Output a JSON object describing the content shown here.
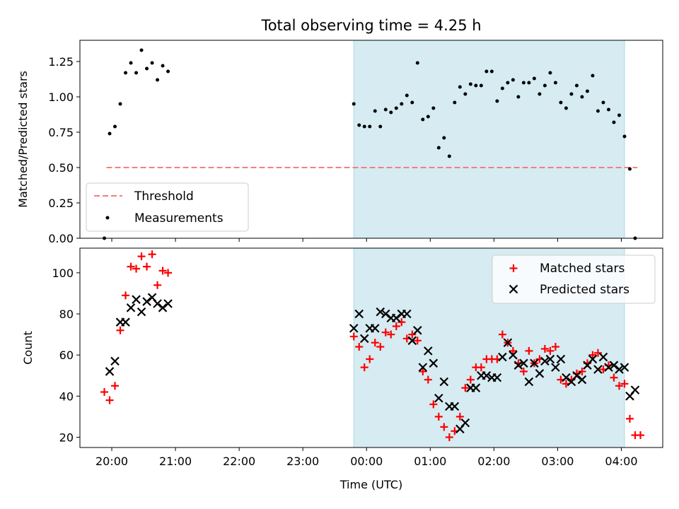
{
  "chart_data": [
    {
      "type": "scatter",
      "title": "Total observing time = 4.25 h",
      "ylabel": "Matched/Predicted stars",
      "xlabel": "",
      "xlim": [
        "19:30",
        "04:39"
      ],
      "ylim": [
        0,
        1.4
      ],
      "yticks": [
        "0.00",
        "0.25",
        "0.50",
        "0.75",
        "1.00",
        "1.25"
      ],
      "xticks": [
        "20:00",
        "21:00",
        "22:00",
        "23:00",
        "00:00",
        "01:00",
        "02:00",
        "03:00",
        "04:00"
      ],
      "shaded_span": [
        "23:48",
        "04:03"
      ],
      "legend_position": "lower-left",
      "threshold": {
        "name": "Threshold",
        "y": 0.5,
        "x": [
          "19:55",
          "04:15"
        ],
        "color": "#f08080"
      },
      "series": [
        {
          "name": "Measurements",
          "color": "#000000",
          "points": [
            [
              "19:53",
              0.0
            ],
            [
              "19:58",
              0.74
            ],
            [
              "20:03",
              0.79
            ],
            [
              "20:08",
              0.95
            ],
            [
              "20:13",
              1.17
            ],
            [
              "20:18",
              1.24
            ],
            [
              "20:23",
              1.17
            ],
            [
              "20:28",
              1.33
            ],
            [
              "20:33",
              1.2
            ],
            [
              "20:38",
              1.24
            ],
            [
              "20:43",
              1.12
            ],
            [
              "20:48",
              1.22
            ],
            [
              "20:53",
              1.18
            ],
            [
              "23:48",
              0.95
            ],
            [
              "23:53",
              0.8
            ],
            [
              "23:58",
              0.79
            ],
            [
              "00:03",
              0.79
            ],
            [
              "00:08",
              0.9
            ],
            [
              "00:13",
              0.79
            ],
            [
              "00:18",
              0.91
            ],
            [
              "00:23",
              0.89
            ],
            [
              "00:28",
              0.92
            ],
            [
              "00:33",
              0.95
            ],
            [
              "00:38",
              1.01
            ],
            [
              "00:43",
              0.96
            ],
            [
              "00:48",
              1.24
            ],
            [
              "00:53",
              0.84
            ],
            [
              "00:58",
              0.86
            ],
            [
              "01:03",
              0.92
            ],
            [
              "01:08",
              0.64
            ],
            [
              "01:13",
              0.71
            ],
            [
              "01:18",
              0.58
            ],
            [
              "01:23",
              0.96
            ],
            [
              "01:28",
              1.07
            ],
            [
              "01:33",
              1.02
            ],
            [
              "01:38",
              1.09
            ],
            [
              "01:43",
              1.08
            ],
            [
              "01:48",
              1.08
            ],
            [
              "01:53",
              1.18
            ],
            [
              "01:58",
              1.18
            ],
            [
              "02:03",
              0.97
            ],
            [
              "02:08",
              1.06
            ],
            [
              "02:13",
              1.1
            ],
            [
              "02:18",
              1.12
            ],
            [
              "02:23",
              1.0
            ],
            [
              "02:28",
              1.1
            ],
            [
              "02:33",
              1.1
            ],
            [
              "02:38",
              1.13
            ],
            [
              "02:43",
              1.02
            ],
            [
              "02:48",
              1.08
            ],
            [
              "02:53",
              1.17
            ],
            [
              "02:58",
              1.1
            ],
            [
              "03:03",
              0.96
            ],
            [
              "03:08",
              0.92
            ],
            [
              "03:13",
              1.02
            ],
            [
              "03:18",
              1.08
            ],
            [
              "03:23",
              1.0
            ],
            [
              "03:28",
              1.04
            ],
            [
              "03:33",
              1.15
            ],
            [
              "03:38",
              0.9
            ],
            [
              "03:43",
              0.96
            ],
            [
              "03:48",
              0.91
            ],
            [
              "03:53",
              0.82
            ],
            [
              "03:58",
              0.87
            ],
            [
              "04:03",
              0.72
            ],
            [
              "04:08",
              0.49
            ],
            [
              "04:13",
              0.0
            ]
          ]
        }
      ]
    },
    {
      "type": "scatter",
      "title": "",
      "ylabel": "Count",
      "xlabel": "Time (UTC)",
      "xlim": [
        "19:30",
        "04:39"
      ],
      "ylim": [
        15,
        112
      ],
      "yticks": [
        "20",
        "40",
        "60",
        "80",
        "100"
      ],
      "xticks": [
        "20:00",
        "21:00",
        "22:00",
        "23:00",
        "00:00",
        "01:00",
        "02:00",
        "03:00",
        "04:00"
      ],
      "shaded_span": [
        "23:48",
        "04:03"
      ],
      "legend_position": "upper-right",
      "series": [
        {
          "name": "Matched stars",
          "marker": "plus",
          "color": "#ff0000",
          "points": [
            [
              "19:53",
              42
            ],
            [
              "19:58",
              38
            ],
            [
              "20:03",
              45
            ],
            [
              "20:08",
              72
            ],
            [
              "20:13",
              89
            ],
            [
              "20:18",
              103
            ],
            [
              "20:23",
              102
            ],
            [
              "20:28",
              108
            ],
            [
              "20:33",
              103
            ],
            [
              "20:38",
              109
            ],
            [
              "20:43",
              94
            ],
            [
              "20:48",
              101
            ],
            [
              "20:53",
              100
            ],
            [
              "23:48",
              69
            ],
            [
              "23:53",
              64
            ],
            [
              "23:58",
              54
            ],
            [
              "00:03",
              58
            ],
            [
              "00:08",
              66
            ],
            [
              "00:13",
              64
            ],
            [
              "00:18",
              71
            ],
            [
              "00:23",
              70
            ],
            [
              "00:28",
              74
            ],
            [
              "00:33",
              76
            ],
            [
              "00:38",
              68
            ],
            [
              "00:43",
              70
            ],
            [
              "00:48",
              67
            ],
            [
              "00:53",
              52
            ],
            [
              "00:58",
              48
            ],
            [
              "01:03",
              36
            ],
            [
              "01:08",
              30
            ],
            [
              "01:13",
              25
            ],
            [
              "01:18",
              20
            ],
            [
              "01:23",
              23
            ],
            [
              "01:28",
              30
            ],
            [
              "01:33",
              44
            ],
            [
              "01:38",
              48
            ],
            [
              "01:43",
              54
            ],
            [
              "01:48",
              54
            ],
            [
              "01:53",
              58
            ],
            [
              "01:58",
              58
            ],
            [
              "02:03",
              58
            ],
            [
              "02:08",
              70
            ],
            [
              "02:13",
              66
            ],
            [
              "02:18",
              62
            ],
            [
              "02:23",
              56
            ],
            [
              "02:28",
              52
            ],
            [
              "02:33",
              62
            ],
            [
              "02:38",
              56
            ],
            [
              "02:43",
              58
            ],
            [
              "02:48",
              63
            ],
            [
              "02:53",
              62
            ],
            [
              "02:58",
              64
            ],
            [
              "03:03",
              48
            ],
            [
              "03:08",
              46
            ],
            [
              "03:13",
              48
            ],
            [
              "03:18",
              51
            ],
            [
              "03:23",
              52
            ],
            [
              "03:28",
              56
            ],
            [
              "03:33",
              60
            ],
            [
              "03:38",
              61
            ],
            [
              "03:43",
              53
            ],
            [
              "03:48",
              55
            ],
            [
              "03:53",
              49
            ],
            [
              "03:58",
              45
            ],
            [
              "04:03",
              46
            ],
            [
              "04:08",
              29
            ],
            [
              "04:13",
              21
            ],
            [
              "04:18",
              21
            ]
          ]
        },
        {
          "name": "Predicted stars",
          "marker": "x",
          "color": "#000000",
          "points": [
            [
              "19:58",
              52
            ],
            [
              "20:03",
              57
            ],
            [
              "20:08",
              76
            ],
            [
              "20:13",
              76
            ],
            [
              "20:18",
              83
            ],
            [
              "20:23",
              87
            ],
            [
              "20:28",
              81
            ],
            [
              "20:33",
              86
            ],
            [
              "20:38",
              88
            ],
            [
              "20:43",
              85
            ],
            [
              "20:48",
              83
            ],
            [
              "20:53",
              85
            ],
            [
              "23:48",
              73
            ],
            [
              "23:53",
              80
            ],
            [
              "23:58",
              68
            ],
            [
              "00:03",
              73
            ],
            [
              "00:08",
              73
            ],
            [
              "00:13",
              81
            ],
            [
              "00:18",
              80
            ],
            [
              "00:23",
              78
            ],
            [
              "00:28",
              78
            ],
            [
              "00:33",
              80
            ],
            [
              "00:38",
              80
            ],
            [
              "00:43",
              67
            ],
            [
              "00:48",
              72
            ],
            [
              "00:53",
              54
            ],
            [
              "00:58",
              62
            ],
            [
              "01:03",
              56
            ],
            [
              "01:08",
              39
            ],
            [
              "01:13",
              47
            ],
            [
              "01:18",
              35
            ],
            [
              "01:23",
              35
            ],
            [
              "01:28",
              24
            ],
            [
              "01:33",
              27
            ],
            [
              "01:38",
              44
            ],
            [
              "01:43",
              44
            ],
            [
              "01:48",
              50
            ],
            [
              "01:53",
              50
            ],
            [
              "01:58",
              49
            ],
            [
              "02:03",
              49
            ],
            [
              "02:08",
              59
            ],
            [
              "02:13",
              66
            ],
            [
              "02:18",
              60
            ],
            [
              "02:23",
              55
            ],
            [
              "02:28",
              56
            ],
            [
              "02:33",
              47
            ],
            [
              "02:38",
              56
            ],
            [
              "02:43",
              51
            ],
            [
              "02:48",
              57
            ],
            [
              "02:53",
              58
            ],
            [
              "02:58",
              54
            ],
            [
              "03:03",
              58
            ],
            [
              "03:08",
              49
            ],
            [
              "03:13",
              47
            ],
            [
              "03:18",
              50
            ],
            [
              "03:23",
              48
            ],
            [
              "03:28",
              55
            ],
            [
              "03:33",
              58
            ],
            [
              "03:38",
              53
            ],
            [
              "03:43",
              59
            ],
            [
              "03:48",
              54
            ],
            [
              "03:53",
              55
            ],
            [
              "03:58",
              53
            ],
            [
              "04:03",
              54
            ],
            [
              "04:08",
              40
            ],
            [
              "04:13",
              43
            ]
          ]
        }
      ]
    }
  ]
}
